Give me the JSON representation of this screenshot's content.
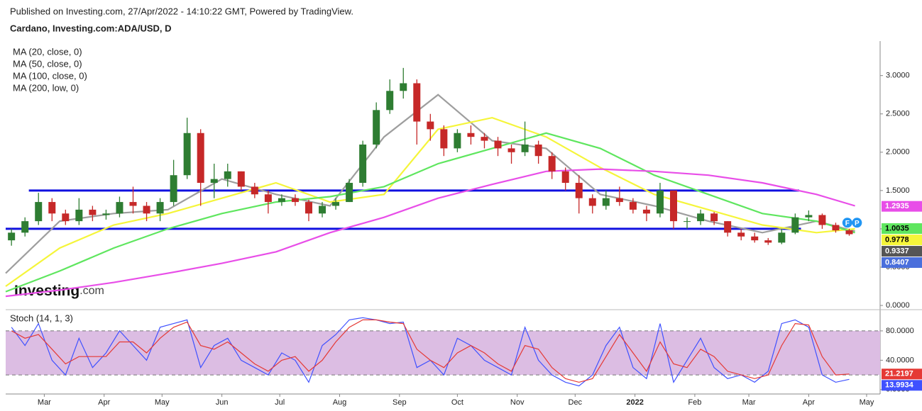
{
  "header": {
    "published": "Published on Investing.com, 27/Apr/2022 - 14:10:22 GMT, Powered by TradingView.",
    "symbol": "Cardano, Investing.com:ADA/USD, D"
  },
  "logo": {
    "brand": "Investing",
    "suffix": ".com"
  },
  "chart_data": [
    {
      "type": "candlestick",
      "x": [
        3,
        10,
        17,
        24,
        31,
        38,
        45,
        52,
        59,
        66,
        73,
        80,
        87,
        94,
        101,
        108,
        115,
        122,
        129,
        136,
        143,
        150,
        157,
        164,
        171,
        178,
        185,
        192,
        199,
        206,
        213,
        220,
        227,
        234,
        241,
        248,
        255,
        262,
        269,
        276,
        283,
        290,
        297,
        304,
        311,
        318,
        325,
        332,
        339,
        346,
        353,
        360,
        367,
        374,
        381,
        388,
        395,
        402,
        409,
        416,
        423,
        430,
        437
      ],
      "open": [
        0.85,
        0.95,
        1.1,
        1.35,
        1.2,
        1.1,
        1.25,
        1.18,
        1.2,
        1.35,
        1.3,
        1.2,
        1.35,
        1.7,
        2.25,
        1.6,
        1.65,
        1.75,
        1.55,
        1.45,
        1.35,
        1.4,
        1.35,
        1.2,
        1.3,
        1.35,
        1.6,
        2.1,
        2.55,
        2.8,
        2.9,
        2.4,
        2.3,
        2.05,
        2.25,
        2.2,
        2.15,
        2.05,
        2.0,
        2.1,
        1.95,
        1.75,
        1.6,
        1.4,
        1.3,
        1.4,
        1.35,
        1.25,
        1.2,
        1.5,
        1.1,
        1.1,
        1.2,
        1.1,
        0.95,
        0.9,
        0.85,
        0.82,
        0.95,
        1.15,
        1.18,
        1.05,
        0.98
      ],
      "high": [
        1.0,
        1.15,
        1.47,
        1.4,
        1.25,
        1.4,
        1.3,
        1.25,
        1.42,
        1.55,
        1.35,
        1.4,
        1.9,
        2.45,
        2.3,
        1.85,
        1.85,
        1.75,
        1.6,
        1.5,
        1.45,
        1.45,
        1.38,
        1.35,
        1.4,
        1.65,
        2.15,
        2.65,
        2.95,
        3.1,
        2.95,
        2.5,
        2.35,
        2.3,
        2.35,
        2.25,
        2.2,
        2.1,
        2.4,
        2.15,
        2.0,
        1.8,
        1.7,
        1.45,
        1.5,
        1.55,
        1.4,
        1.3,
        1.6,
        1.5,
        1.15,
        1.25,
        1.22,
        1.1,
        1.0,
        0.95,
        0.88,
        1.0,
        1.2,
        1.24,
        1.2,
        1.08,
        1.0
      ],
      "low": [
        0.78,
        0.9,
        1.05,
        1.1,
        1.05,
        1.05,
        1.1,
        1.12,
        1.15,
        1.2,
        1.1,
        1.1,
        1.3,
        1.65,
        1.3,
        1.4,
        1.55,
        1.5,
        1.4,
        1.2,
        1.3,
        1.3,
        1.1,
        1.15,
        1.25,
        1.35,
        1.55,
        2.05,
        2.5,
        2.7,
        2.1,
        2.15,
        1.95,
        2.0,
        2.1,
        2.05,
        1.95,
        1.85,
        1.95,
        1.85,
        1.65,
        1.5,
        1.2,
        1.2,
        1.25,
        1.3,
        1.2,
        1.1,
        1.15,
        1.0,
        1.0,
        1.05,
        1.05,
        0.9,
        0.85,
        0.82,
        0.79,
        0.8,
        0.93,
        1.1,
        1.0,
        0.95,
        0.91
      ],
      "close": [
        0.95,
        1.1,
        1.35,
        1.2,
        1.1,
        1.25,
        1.18,
        1.2,
        1.35,
        1.3,
        1.2,
        1.35,
        1.7,
        2.25,
        1.6,
        1.65,
        1.75,
        1.55,
        1.45,
        1.35,
        1.4,
        1.35,
        1.2,
        1.3,
        1.35,
        1.6,
        2.1,
        2.55,
        2.8,
        2.9,
        2.4,
        2.3,
        2.05,
        2.25,
        2.2,
        2.15,
        2.05,
        2.0,
        2.1,
        1.95,
        1.75,
        1.6,
        1.4,
        1.3,
        1.4,
        1.35,
        1.25,
        1.2,
        1.5,
        1.1,
        1.1,
        1.2,
        1.1,
        0.95,
        0.9,
        0.85,
        0.82,
        0.95,
        1.15,
        1.18,
        1.05,
        0.98,
        0.93
      ],
      "up_color": "#2e7d32",
      "down_color": "#c62828",
      "series": [
        {
          "name": "MA (20, close, 0)",
          "color": "#9e9e9e",
          "x": [
            0,
            28,
            56,
            84,
            112,
            140,
            168,
            196,
            224,
            252,
            280,
            308,
            336,
            364,
            392,
            420,
            440
          ],
          "values": [
            0.42,
            1.1,
            1.2,
            1.25,
            1.65,
            1.45,
            1.3,
            2.2,
            2.75,
            2.15,
            2.05,
            1.45,
            1.3,
            1.1,
            0.95,
            1.1,
            0.97
          ]
        },
        {
          "name": "MA (50, close, 0)",
          "color": "#f5f53a",
          "x": [
            0,
            28,
            56,
            84,
            112,
            140,
            168,
            196,
            224,
            252,
            280,
            308,
            336,
            364,
            392,
            420,
            440
          ],
          "values": [
            0.25,
            0.75,
            1.05,
            1.2,
            1.4,
            1.6,
            1.35,
            1.45,
            2.3,
            2.45,
            2.2,
            1.8,
            1.45,
            1.25,
            1.05,
            0.95,
            1.0
          ]
        },
        {
          "name": "MA (100, close, 0)",
          "color": "#5fe65f",
          "x": [
            0,
            28,
            56,
            84,
            112,
            140,
            168,
            196,
            224,
            252,
            280,
            308,
            336,
            364,
            392,
            420,
            440
          ],
          "values": [
            0.18,
            0.45,
            0.75,
            1.0,
            1.2,
            1.35,
            1.42,
            1.55,
            1.85,
            2.05,
            2.25,
            2.05,
            1.7,
            1.45,
            1.2,
            1.1,
            0.95
          ]
        },
        {
          "name": "MA (200, low, 0)",
          "color": "#e84ee8",
          "x": [
            0,
            28,
            56,
            84,
            112,
            140,
            168,
            196,
            224,
            252,
            280,
            308,
            336,
            364,
            392,
            420,
            440
          ],
          "values": [
            0.12,
            0.2,
            0.3,
            0.42,
            0.55,
            0.7,
            0.95,
            1.15,
            1.4,
            1.58,
            1.75,
            1.78,
            1.75,
            1.7,
            1.6,
            1.45,
            1.3
          ]
        }
      ],
      "levels": [
        {
          "value": 1.5,
          "x": [
            12,
            411
          ],
          "color": "#1010e0"
        },
        {
          "value": 1.0,
          "x": [
            0,
            412
          ],
          "color": "#1010e0"
        }
      ],
      "events": [
        {
          "label": "F",
          "x": 436,
          "value": 1.08
        },
        {
          "label": "P",
          "x": 441,
          "value": 1.08
        }
      ],
      "price_labels": [
        {
          "value": 1.2935,
          "color": "#e84ee8"
        },
        {
          "value": 1.0035,
          "color": "#5fe65f"
        },
        {
          "value": 0.9778,
          "color": "#f5f53a"
        },
        {
          "value": 0.9337,
          "color": "#555555"
        },
        {
          "value": 0.8407,
          "color": "#4a6fdc"
        }
      ],
      "xlim": [
        0,
        453
      ],
      "ylim": [
        -0.055,
        3.45
      ],
      "yticks": [
        {
          "value": 0,
          "label": "0.0000"
        },
        {
          "value": 0.5,
          "label": "0.5000"
        },
        {
          "value": 1,
          "label": "1.0000"
        },
        {
          "value": 1.5,
          "label": "1.5000"
        },
        {
          "value": 2,
          "label": "2.0000"
        },
        {
          "value": 2.5,
          "label": "2.5000"
        },
        {
          "value": 3,
          "label": "3.0000"
        }
      ]
    },
    {
      "type": "line",
      "title": "Stoch (14, 1, 3)",
      "x": [
        3,
        10,
        17,
        24,
        31,
        38,
        45,
        52,
        59,
        66,
        73,
        80,
        87,
        94,
        101,
        108,
        115,
        122,
        129,
        136,
        143,
        150,
        157,
        164,
        171,
        178,
        185,
        192,
        199,
        206,
        213,
        220,
        227,
        234,
        241,
        248,
        255,
        262,
        269,
        276,
        283,
        290,
        297,
        304,
        311,
        318,
        325,
        332,
        339,
        346,
        353,
        360,
        367,
        374,
        381,
        388,
        395,
        402,
        409,
        416,
        423,
        430,
        437
      ],
      "series": [
        {
          "name": "%K",
          "color": "#3f51ff",
          "values": [
            85,
            60,
            90,
            40,
            20,
            70,
            30,
            50,
            80,
            60,
            40,
            85,
            90,
            95,
            30,
            60,
            70,
            40,
            30,
            20,
            50,
            40,
            10,
            60,
            75,
            95,
            98,
            95,
            90,
            92,
            30,
            40,
            20,
            70,
            60,
            40,
            30,
            20,
            85,
            40,
            20,
            10,
            5,
            20,
            60,
            85,
            30,
            15,
            90,
            10,
            40,
            70,
            30,
            15,
            20,
            10,
            25,
            90,
            95,
            85,
            20,
            10,
            13.9934
          ]
        },
        {
          "name": "%D",
          "color": "#e53935",
          "values": [
            80,
            70,
            75,
            55,
            35,
            45,
            45,
            45,
            65,
            65,
            50,
            70,
            85,
            92,
            60,
            55,
            65,
            50,
            35,
            25,
            40,
            45,
            25,
            40,
            65,
            85,
            95,
            95,
            92,
            90,
            55,
            40,
            30,
            50,
            60,
            50,
            35,
            25,
            60,
            55,
            30,
            15,
            10,
            15,
            45,
            75,
            50,
            25,
            65,
            35,
            30,
            55,
            45,
            25,
            20,
            15,
            20,
            60,
            90,
            88,
            45,
            20,
            21.2197
          ]
        }
      ],
      "band": [
        20,
        80
      ],
      "band_color": "#dcbde3",
      "price_labels": [
        {
          "value": 21.2197,
          "color": "#e53935"
        },
        {
          "value": 13.9934,
          "color": "#3f51ff"
        }
      ],
      "xlim": [
        0,
        453
      ],
      "ylim": [
        -6,
        106
      ],
      "yticks": [
        {
          "value": 0,
          "label": "0.0000"
        },
        {
          "value": 40,
          "label": "40.0000"
        },
        {
          "value": 80,
          "label": "80.0000"
        }
      ],
      "xticks": [
        {
          "value": 20,
          "label": "Mar"
        },
        {
          "value": 51,
          "label": "Apr"
        },
        {
          "value": 81,
          "label": "May"
        },
        {
          "value": 112,
          "label": "Jun"
        },
        {
          "value": 142,
          "label": "Jul"
        },
        {
          "value": 173,
          "label": "Aug"
        },
        {
          "value": 204,
          "label": "Sep"
        },
        {
          "value": 234,
          "label": "Oct"
        },
        {
          "value": 265,
          "label": "Nov"
        },
        {
          "value": 295,
          "label": "Dec"
        },
        {
          "value": 326,
          "label": "2022"
        },
        {
          "value": 357,
          "label": "Feb"
        },
        {
          "value": 385,
          "label": "Mar"
        },
        {
          "value": 416,
          "label": "Apr"
        },
        {
          "value": 446,
          "label": "May"
        }
      ]
    }
  ]
}
